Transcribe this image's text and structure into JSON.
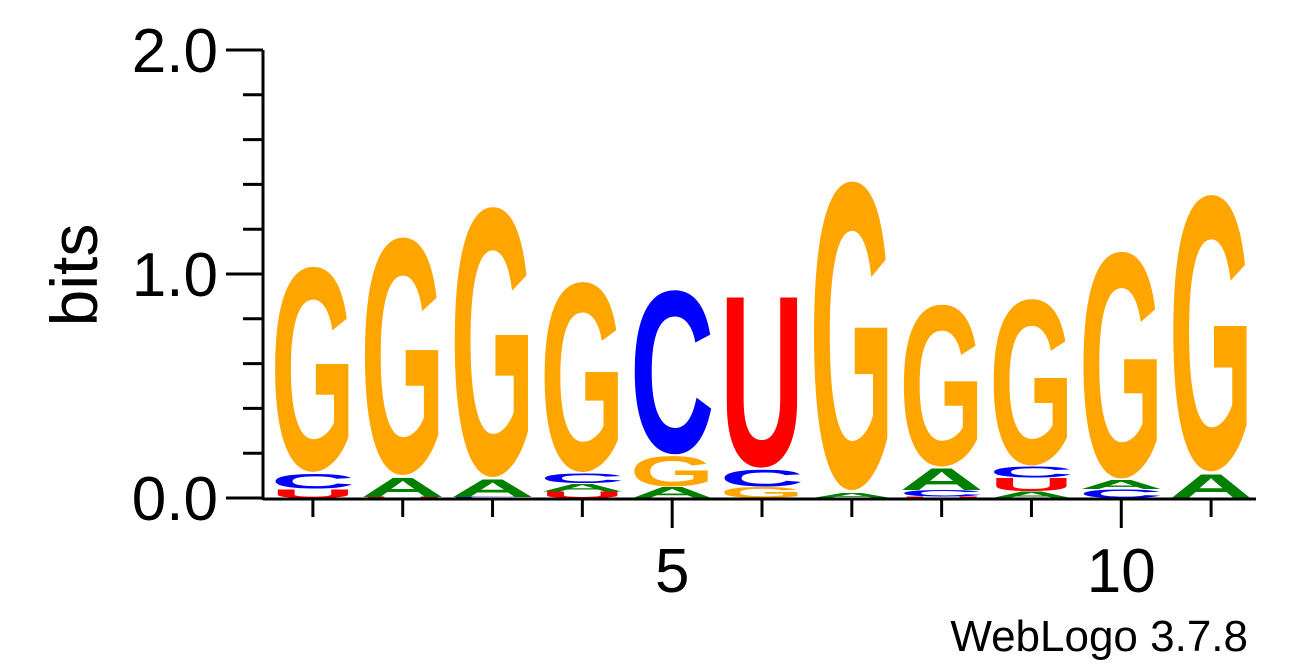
{
  "chart_data": {
    "type": "sequence-logo",
    "ylabel": "bits",
    "ylim": [
      0,
      2
    ],
    "yticks": [
      "0.0",
      "1.0",
      "2.0"
    ],
    "xlim": [
      0.5,
      11.5
    ],
    "xticks": [
      {
        "pos": 5,
        "label": "5"
      },
      {
        "pos": 10,
        "label": "10"
      }
    ],
    "credit": "WebLogo 3.7.8",
    "colors": {
      "G": "#ffa500",
      "C": "#0000ff",
      "U": "#ff0000",
      "A": "#008000"
    },
    "positions": [
      {
        "pos": 1,
        "stack": [
          {
            "letter": "U",
            "bits": 0.04
          },
          {
            "letter": "C",
            "bits": 0.07
          },
          {
            "letter": "G",
            "bits": 0.95
          }
        ]
      },
      {
        "pos": 2,
        "stack": [
          {
            "letter": "U",
            "bits": 0.005
          },
          {
            "letter": "A",
            "bits": 0.09
          },
          {
            "letter": "G",
            "bits": 1.1
          }
        ]
      },
      {
        "pos": 3,
        "stack": [
          {
            "letter": "C",
            "bits": 0.005
          },
          {
            "letter": "A",
            "bits": 0.08
          },
          {
            "letter": "G",
            "bits": 1.25
          }
        ]
      },
      {
        "pos": 4,
        "stack": [
          {
            "letter": "U",
            "bits": 0.03
          },
          {
            "letter": "A",
            "bits": 0.035
          },
          {
            "letter": "C",
            "bits": 0.045
          },
          {
            "letter": "G",
            "bits": 0.88
          }
        ]
      },
      {
        "pos": 5,
        "stack": [
          {
            "letter": "A",
            "bits": 0.05
          },
          {
            "letter": "G",
            "bits": 0.14
          },
          {
            "letter": "C",
            "bits": 0.76
          }
        ]
      },
      {
        "pos": 6,
        "stack": [
          {
            "letter": "G",
            "bits": 0.05
          },
          {
            "letter": "C",
            "bits": 0.08
          },
          {
            "letter": "U",
            "bits": 0.8
          }
        ]
      },
      {
        "pos": 7,
        "stack": [
          {
            "letter": "A",
            "bits": 0.025
          },
          {
            "letter": "G",
            "bits": 1.43
          }
        ]
      },
      {
        "pos": 8,
        "stack": [
          {
            "letter": "U",
            "bits": 0.005
          },
          {
            "letter": "C",
            "bits": 0.03
          },
          {
            "letter": "A",
            "bits": 0.1
          },
          {
            "letter": "G",
            "bits": 0.75
          }
        ]
      },
      {
        "pos": 9,
        "stack": [
          {
            "letter": "A",
            "bits": 0.03
          },
          {
            "letter": "U",
            "bits": 0.06
          },
          {
            "letter": "C",
            "bits": 0.05
          },
          {
            "letter": "G",
            "bits": 0.77
          }
        ]
      },
      {
        "pos": 10,
        "stack": [
          {
            "letter": "C",
            "bits": 0.04
          },
          {
            "letter": "A",
            "bits": 0.04
          },
          {
            "letter": "G",
            "bits": 1.05
          }
        ]
      },
      {
        "pos": 11,
        "stack": [
          {
            "letter": "A",
            "bits": 0.11
          },
          {
            "letter": "G",
            "bits": 1.28
          }
        ]
      }
    ]
  }
}
